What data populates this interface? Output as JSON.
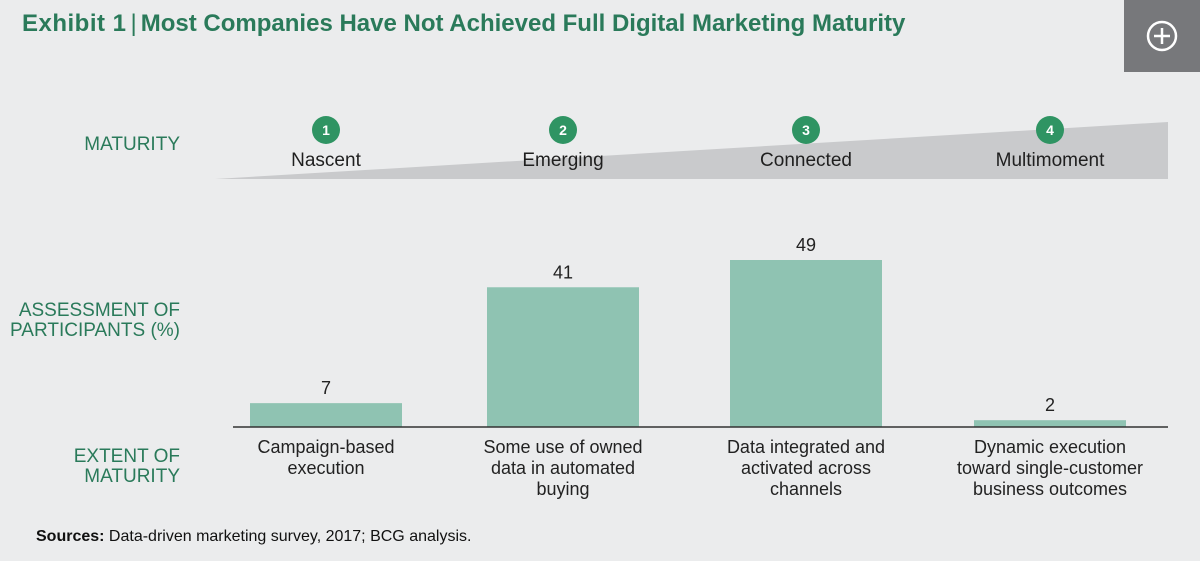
{
  "header": {
    "exhibit": "Exhibit 1",
    "separator": "|",
    "title": "Most Companies Have Not Achieved Full Digital Marketing Maturity",
    "expand_icon": "plus-circle-icon"
  },
  "row_labels": {
    "maturity": "MATURITY",
    "assessment_line1": "ASSESSMENT OF",
    "assessment_line2": "PARTICIPANTS (%)",
    "extent_line1": "EXTENT OF",
    "extent_line2": "MATURITY"
  },
  "stages": [
    {
      "number": "1",
      "name": "Nascent"
    },
    {
      "number": "2",
      "name": "Emerging"
    },
    {
      "number": "3",
      "name": "Connected"
    },
    {
      "number": "4",
      "name": "Multimoment"
    }
  ],
  "chart_data": {
    "type": "bar",
    "title": "Most Companies Have Not Achieved Full Digital Marketing Maturity",
    "ylabel": "ASSESSMENT OF PARTICIPANTS (%)",
    "xlabel": "EXTENT OF MATURITY",
    "categories": [
      [
        "Campaign-based",
        "execution"
      ],
      [
        "Some use of owned",
        "data in automated",
        "buying"
      ],
      [
        "Data integrated and",
        "activated across",
        "channels"
      ],
      [
        "Dynamic execution",
        "toward single-customer",
        "business outcomes"
      ]
    ],
    "values": [
      7,
      41,
      49,
      2
    ],
    "ylim": [
      0,
      49
    ],
    "grid": false
  },
  "colors": {
    "accent": "#2a7a5a",
    "bar": "#8fc3b2",
    "wedge": "#c9cacc",
    "circle": "#2f9463",
    "background": "#ebeced"
  },
  "source": {
    "label": "Sources:",
    "text": " Data-driven marketing survey, 2017; BCG analysis."
  }
}
